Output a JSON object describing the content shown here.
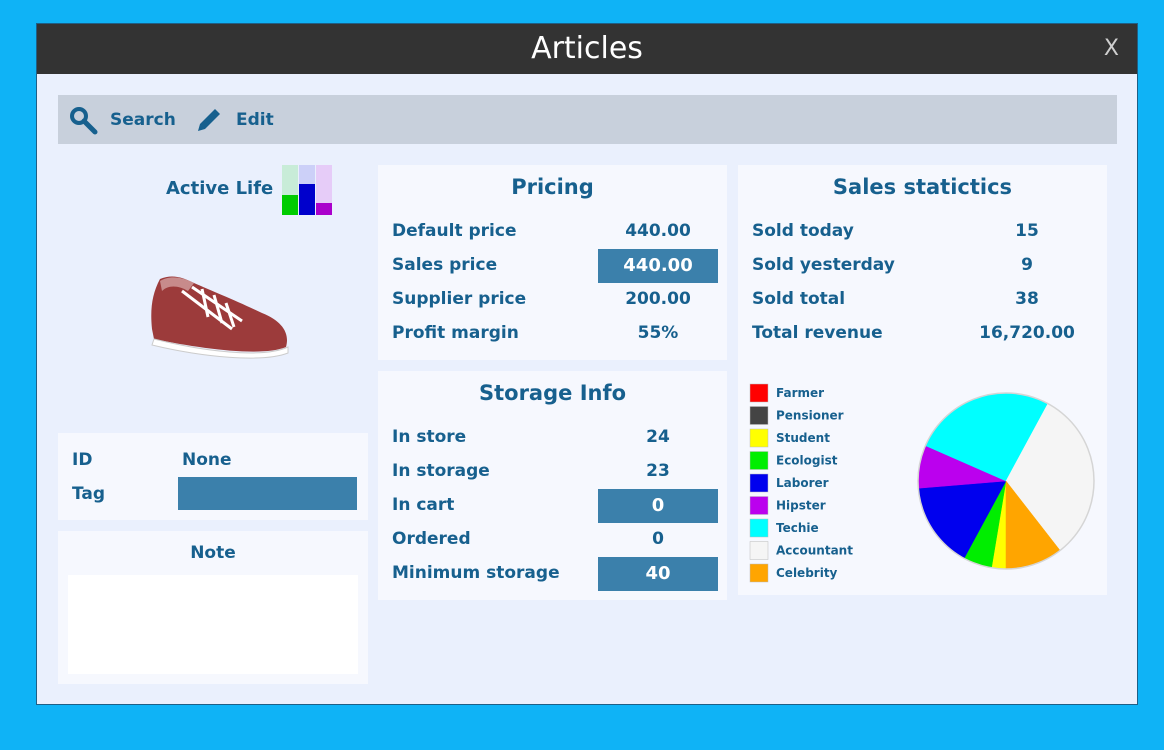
{
  "window": {
    "title": "Articles",
    "close": "X"
  },
  "toolbar": {
    "buttons": [
      "Search",
      "Edit"
    ]
  },
  "product": {
    "name": "Active Life",
    "id_label": "ID",
    "id_value": "None",
    "tag_label": "Tag",
    "note_label": "Note"
  },
  "pricing": {
    "title": "Pricing",
    "rows": [
      {
        "label": "Default price",
        "value": "440.00",
        "editable": false
      },
      {
        "label": "Sales price",
        "value": "440.00",
        "editable": true
      },
      {
        "label": "Supplier price",
        "value": "200.00",
        "editable": false
      },
      {
        "label": "Profit margin",
        "value": "55%",
        "editable": false
      }
    ]
  },
  "storage": {
    "title": "Storage Info",
    "rows": [
      {
        "label": "In store",
        "value": "24",
        "editable": false
      },
      {
        "label": "In storage",
        "value": "23",
        "editable": false
      },
      {
        "label": "In cart",
        "value": "0",
        "editable": true
      },
      {
        "label": "Ordered",
        "value": "0",
        "editable": false
      },
      {
        "label": "Minimum storage",
        "value": "40",
        "editable": true
      }
    ]
  },
  "sales": {
    "title": "Sales statictics",
    "rows": [
      {
        "label": "Sold today",
        "value": "15"
      },
      {
        "label": "Sold yesterday",
        "value": "9"
      },
      {
        "label": "Sold total",
        "value": "38"
      },
      {
        "label": "Total revenue",
        "value": "16,720.00"
      }
    ],
    "chart": {
      "type": "pie",
      "categories": [
        "Farmer",
        "Pensioner",
        "Student",
        "Ecologist",
        "Laborer",
        "Hipster",
        "Techie",
        "Accountant",
        "Celebrity"
      ],
      "colors": [
        "#ff0000",
        "#444444",
        "#ffff00",
        "#00ee00",
        "#0000ee",
        "#bb00ee",
        "#00ffff",
        "#f5f5f5",
        "#ffa500"
      ],
      "values": [
        0,
        0,
        1,
        2,
        6,
        3,
        10,
        12,
        4
      ]
    }
  }
}
